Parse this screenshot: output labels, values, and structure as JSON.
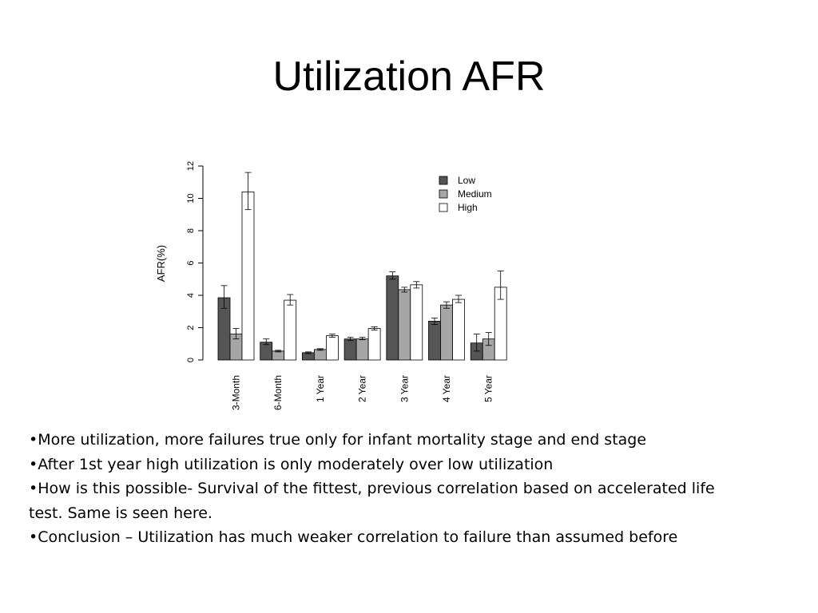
{
  "slide": {
    "title": "Utilization AFR",
    "bullets": [
      "•More utilization, more failures true only for infant mortality stage and end stage",
      "•After 1st year high utilization is only moderately over low utilization",
      "•How is this possible-  Survival of the fittest, previous correlation based on accelerated life test. Same is seen here.",
      "•Conclusion – Utilization has much weaker correlation to failure than assumed before"
    ]
  },
  "chart_data": {
    "type": "bar",
    "title": "",
    "xlabel": "",
    "ylabel": "AFR(%)",
    "ylim": [
      0,
      12
    ],
    "yticks": [
      "0",
      "2",
      "4",
      "6",
      "8",
      "10",
      "12"
    ],
    "categories": [
      "3-Month",
      "6-Month",
      "1 Year",
      "2 Year",
      "3 Year",
      "4 Year",
      "5 Year"
    ],
    "legend_position": "top-right",
    "grid": false,
    "series": [
      {
        "name": "Low",
        "color": "#555555",
        "values": [
          3.85,
          1.1,
          0.45,
          1.3,
          5.2,
          2.4,
          1.05
        ],
        "err_low": [
          3.2,
          0.95,
          0.4,
          1.2,
          5.0,
          2.2,
          0.55
        ],
        "err_high": [
          4.6,
          1.3,
          0.5,
          1.4,
          5.45,
          2.6,
          1.6
        ]
      },
      {
        "name": "Medium",
        "color": "#a6a6a6",
        "values": [
          1.6,
          0.55,
          0.65,
          1.3,
          4.35,
          3.4,
          1.3
        ],
        "err_low": [
          1.3,
          0.5,
          0.6,
          1.25,
          4.2,
          3.2,
          0.9
        ],
        "err_high": [
          1.95,
          0.6,
          0.7,
          1.4,
          4.5,
          3.6,
          1.7
        ]
      },
      {
        "name": "High",
        "color": "#ffffff",
        "values": [
          10.4,
          3.7,
          1.5,
          1.95,
          4.65,
          3.75,
          4.5
        ],
        "err_low": [
          9.3,
          3.4,
          1.4,
          1.85,
          4.45,
          3.55,
          3.75
        ],
        "err_high": [
          11.6,
          4.05,
          1.6,
          2.05,
          4.85,
          4.0,
          5.5
        ]
      }
    ]
  }
}
